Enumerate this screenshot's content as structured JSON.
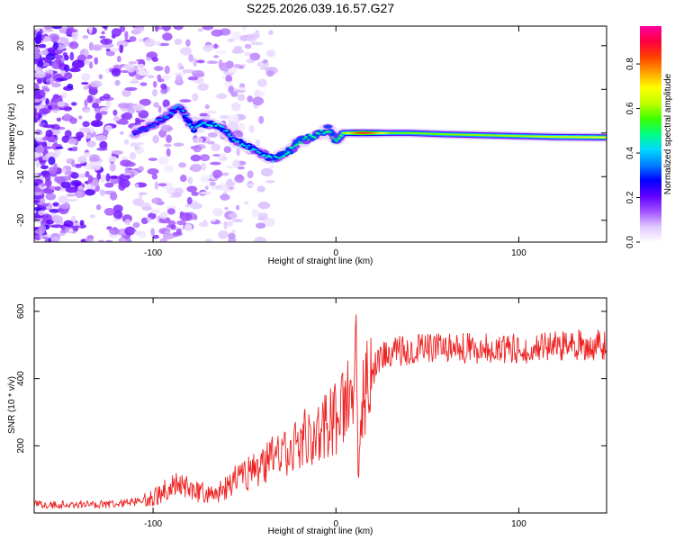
{
  "title": "S225.2026.039.16.57.G27",
  "chart_data": [
    {
      "type": "heatmap",
      "title": "S225.2026.039.16.57.G27",
      "xlabel": "Height of straight line (km)",
      "ylabel": "Frequency (Hz)",
      "xlim": [
        -165,
        148
      ],
      "ylim": [
        -25,
        24.5
      ],
      "x_ticks": [
        -100,
        0,
        100
      ],
      "y_ticks": [
        -20,
        -10,
        0,
        10,
        20
      ],
      "colorbar": {
        "label": "Normalized spectral amplitude",
        "range": [
          0,
          0.97
        ],
        "ticks": [
          0.0,
          0.2,
          0.4,
          0.6,
          0.8
        ],
        "colors": [
          "#ffffff",
          "#e0c8ff",
          "#a050ff",
          "#6000ff",
          "#0000ff",
          "#0080ff",
          "#00d8ff",
          "#00ff80",
          "#40ff00",
          "#c0ff00",
          "#ffff00",
          "#ffa000",
          "#ff4000",
          "#ff0040",
          "#ff00a0"
        ]
      },
      "ridge_frequency": {
        "x": [
          -165,
          -150,
          -140,
          -130,
          -120,
          -110,
          -100,
          -92,
          -86,
          -82,
          -78,
          -74,
          -68,
          -62,
          -55,
          -48,
          -40,
          -34,
          -30,
          -25,
          -20,
          -14,
          -8,
          -4,
          0,
          4,
          10,
          20,
          40,
          60,
          80,
          100,
          120,
          148
        ],
        "y": [
          0,
          2,
          -3,
          4,
          -2,
          0,
          2,
          4,
          6,
          4,
          1,
          2,
          2,
          1,
          -2,
          -3,
          -5,
          -6,
          -5,
          -4,
          -2,
          -1,
          0,
          1,
          -2,
          0,
          0,
          0,
          0,
          -0.3,
          -0.5,
          -0.7,
          -0.9,
          -1
        ]
      },
      "ridge_amplitude": {
        "x": [
          -165,
          -120,
          -100,
          -85,
          -75,
          -60,
          -40,
          -20,
          0,
          10,
          15,
          20,
          30,
          50,
          100,
          148
        ],
        "y": [
          0.2,
          0.25,
          0.35,
          0.4,
          0.45,
          0.45,
          0.45,
          0.5,
          0.5,
          0.8,
          0.9,
          0.82,
          0.6,
          0.6,
          0.62,
          0.7
        ]
      }
    },
    {
      "type": "line",
      "xlabel": "Height of straight line (km)",
      "ylabel": "SNR (10 * v/v)",
      "xlim": [
        -165,
        148
      ],
      "ylim": [
        0,
        640
      ],
      "x_ticks": [
        -100,
        0,
        100
      ],
      "y_ticks": [
        200,
        400,
        600
      ],
      "color": "#ee2222",
      "series": [
        {
          "name": "SNR",
          "x": [
            -165,
            -140,
            -120,
            -105,
            -100,
            -95,
            -90,
            -85,
            -80,
            -75,
            -70,
            -65,
            -60,
            -55,
            -50,
            -45,
            -40,
            -35,
            -30,
            -25,
            -20,
            -15,
            -10,
            -5,
            0,
            5,
            8,
            10,
            11,
            12,
            15,
            20,
            25,
            30,
            50,
            80,
            100,
            120,
            130,
            148
          ],
          "y": [
            25,
            25,
            28,
            35,
            45,
            60,
            80,
            90,
            75,
            65,
            55,
            60,
            75,
            100,
            110,
            130,
            140,
            160,
            170,
            175,
            220,
            230,
            240,
            260,
            280,
            330,
            340,
            350,
            620,
            130,
            360,
            420,
            460,
            480,
            490,
            490,
            490,
            495,
            500,
            500
          ]
        }
      ]
    }
  ]
}
